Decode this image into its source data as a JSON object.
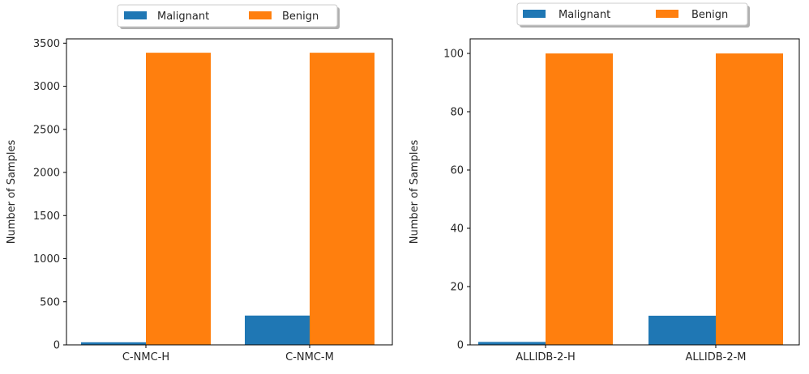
{
  "chart_data": [
    {
      "type": "bar",
      "categories": [
        "C-NMC-H",
        "C-NMC-M"
      ],
      "series": [
        {
          "name": "Malignant",
          "values": [
            30,
            340
          ],
          "color": "#1f77b4"
        },
        {
          "name": "Benign",
          "values": [
            3389,
            3389
          ],
          "color": "#ff7f0e"
        }
      ],
      "ylabel": "Number of Samples",
      "xlabel": "",
      "ylim": [
        0,
        3550
      ],
      "yticks": [
        0,
        500,
        1000,
        1500,
        2000,
        2500,
        3000,
        3500
      ],
      "grid": false,
      "legend": "top-center"
    },
    {
      "type": "bar",
      "categories": [
        "ALLIDB-2-H",
        "ALLIDB-2-M"
      ],
      "series": [
        {
          "name": "Malignant",
          "values": [
            1,
            10
          ],
          "color": "#1f77b4"
        },
        {
          "name": "Benign",
          "values": [
            100,
            100
          ],
          "color": "#ff7f0e"
        }
      ],
      "ylabel": "Number of Samples",
      "xlabel": "",
      "ylim": [
        0,
        105
      ],
      "yticks": [
        0,
        20,
        40,
        60,
        80,
        100
      ],
      "grid": false,
      "legend": "top-center"
    }
  ]
}
